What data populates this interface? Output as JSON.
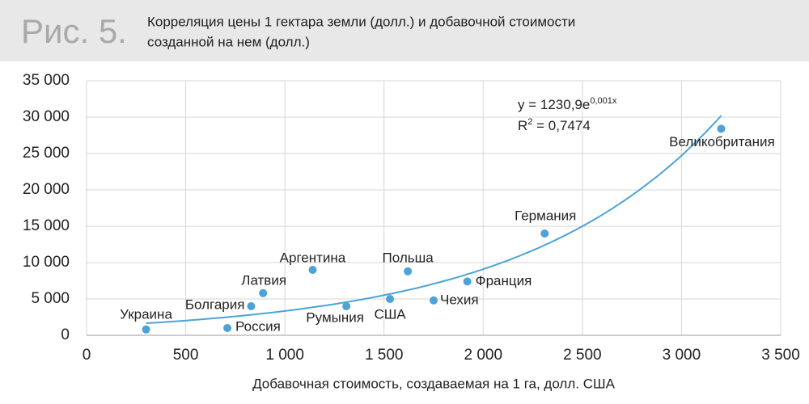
{
  "chart_data": {
    "type": "scatter",
    "figure_label": "Рис. 5.",
    "title_lines": [
      "Корреляция цены 1 гектара земли (долл.) и добавочной стоимости",
      "созданной на нем (долл.)"
    ],
    "x_label": "Добавочная стоимость, создаваемая на 1 га, долл. США",
    "labels": [
      "Украина",
      "Россия",
      "Болгария",
      "Латвия",
      "Аргентина",
      "Румыния",
      "США",
      "Польша",
      "Чехия",
      "Франция",
      "Германия",
      "Великобритания"
    ],
    "x": [
      300,
      710,
      830,
      890,
      1140,
      1310,
      1530,
      1620,
      1750,
      1920,
      2310,
      3200
    ],
    "values": [
      800,
      1000,
      4000,
      5800,
      9000,
      4000,
      5000,
      8800,
      4800,
      7400,
      14000,
      28400
    ],
    "color": "#4ba3d6",
    "trendline": {
      "a": 1230.9,
      "b": 0.001,
      "x_start": 300,
      "x_end": 3200,
      "equation_label": "y = 1230,9e",
      "equation_exponent": "0,001x",
      "r2_label": "R",
      "r2_sup": "2",
      "r2_value_label": " = 0,7474"
    },
    "xlim": [
      0,
      3500
    ],
    "xticks": [
      0,
      500,
      {
        "value": 1000,
        "label": "1 000"
      },
      {
        "value": 1500,
        "label": "1 500"
      },
      {
        "value": 2000,
        "label": "2 000"
      },
      {
        "value": 2500,
        "label": "2 500"
      },
      {
        "value": 3000,
        "label": "3 000"
      },
      {
        "value": 3500,
        "label": "3 500"
      }
    ],
    "ylim": [
      0,
      35000
    ],
    "yticks": [
      0,
      {
        "value": 5000,
        "label": "5 000"
      },
      {
        "value": 10000,
        "label": "10 000"
      },
      {
        "value": 15000,
        "label": "15 000"
      },
      {
        "value": 20000,
        "label": "20 000"
      },
      {
        "value": 25000,
        "label": "25 000"
      },
      {
        "value": 30000,
        "label": "30 000"
      },
      {
        "value": 35000,
        "label": "35 000"
      }
    ],
    "grid": true
  }
}
